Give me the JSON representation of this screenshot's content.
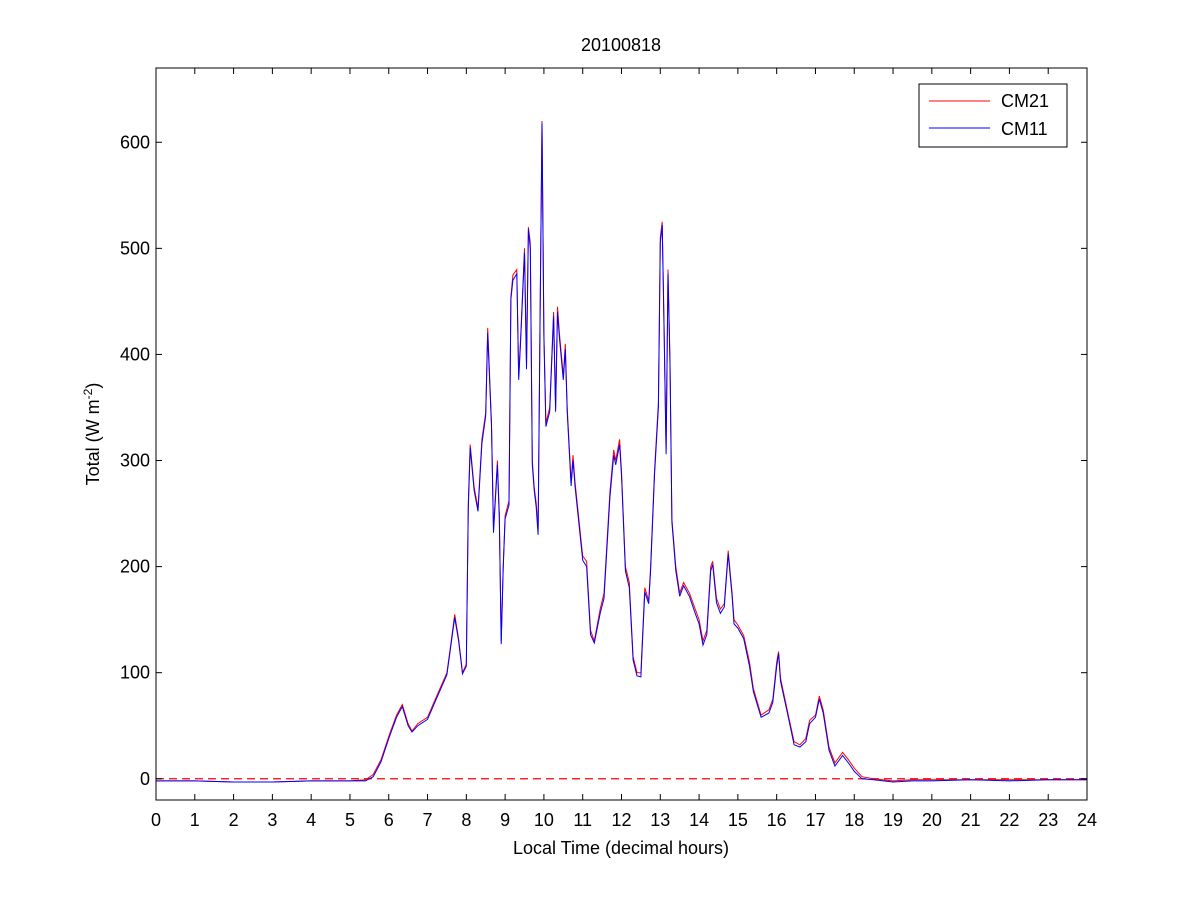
{
  "chart_data": {
    "type": "line",
    "title": "20100818",
    "xlabel": "Local Time (decimal hours)",
    "ylabel": {
      "main": "Total (W m",
      "sup": "-2",
      "end": ")"
    },
    "xlim": [
      0,
      24
    ],
    "ylim": [
      -20,
      670
    ],
    "xticks": [
      0,
      1,
      2,
      3,
      4,
      5,
      6,
      7,
      8,
      9,
      10,
      11,
      12,
      13,
      14,
      15,
      16,
      17,
      18,
      19,
      20,
      21,
      22,
      23,
      24
    ],
    "yticks": [
      0,
      100,
      200,
      300,
      400,
      500,
      600
    ],
    "grid": false,
    "legend_position": "top-right",
    "zero_line": {
      "value": 0,
      "color": "#ff0000",
      "style": "dashed"
    },
    "series": [
      {
        "name": "CM21",
        "color": "#ff0000",
        "points": [
          [
            0,
            -2
          ],
          [
            1,
            -2
          ],
          [
            2,
            -3
          ],
          [
            3,
            -3
          ],
          [
            4,
            -2
          ],
          [
            5,
            -2
          ],
          [
            5.4,
            -1
          ],
          [
            5.6,
            4
          ],
          [
            5.8,
            18
          ],
          [
            6.0,
            40
          ],
          [
            6.2,
            60
          ],
          [
            6.35,
            70
          ],
          [
            6.5,
            52
          ],
          [
            6.6,
            45
          ],
          [
            6.75,
            52
          ],
          [
            7.0,
            58
          ],
          [
            7.2,
            75
          ],
          [
            7.5,
            100
          ],
          [
            7.6,
            127
          ],
          [
            7.7,
            155
          ],
          [
            7.8,
            132
          ],
          [
            7.9,
            100
          ],
          [
            8.0,
            108
          ],
          [
            8.05,
            260
          ],
          [
            8.1,
            315
          ],
          [
            8.2,
            275
          ],
          [
            8.3,
            255
          ],
          [
            8.4,
            320
          ],
          [
            8.5,
            345
          ],
          [
            8.55,
            425
          ],
          [
            8.65,
            335
          ],
          [
            8.7,
            235
          ],
          [
            8.8,
            300
          ],
          [
            8.85,
            250
          ],
          [
            8.9,
            130
          ],
          [
            8.95,
            200
          ],
          [
            9.0,
            248
          ],
          [
            9.1,
            262
          ],
          [
            9.15,
            455
          ],
          [
            9.2,
            475
          ],
          [
            9.3,
            480
          ],
          [
            9.35,
            380
          ],
          [
            9.4,
            415
          ],
          [
            9.5,
            500
          ],
          [
            9.55,
            390
          ],
          [
            9.6,
            520
          ],
          [
            9.65,
            505
          ],
          [
            9.7,
            300
          ],
          [
            9.75,
            275
          ],
          [
            9.8,
            260
          ],
          [
            9.85,
            235
          ],
          [
            9.9,
            430
          ],
          [
            9.95,
            620
          ],
          [
            10.0,
            420
          ],
          [
            10.05,
            335
          ],
          [
            10.15,
            350
          ],
          [
            10.25,
            440
          ],
          [
            10.3,
            350
          ],
          [
            10.35,
            445
          ],
          [
            10.4,
            420
          ],
          [
            10.5,
            380
          ],
          [
            10.55,
            410
          ],
          [
            10.6,
            350
          ],
          [
            10.7,
            280
          ],
          [
            10.75,
            305
          ],
          [
            10.8,
            280
          ],
          [
            11.0,
            210
          ],
          [
            11.1,
            205
          ],
          [
            11.2,
            140
          ],
          [
            11.3,
            130
          ],
          [
            11.45,
            160
          ],
          [
            11.55,
            175
          ],
          [
            11.7,
            270
          ],
          [
            11.8,
            310
          ],
          [
            11.85,
            300
          ],
          [
            11.95,
            320
          ],
          [
            12.0,
            290
          ],
          [
            12.1,
            200
          ],
          [
            12.2,
            185
          ],
          [
            12.3,
            115
          ],
          [
            12.4,
            100
          ],
          [
            12.5,
            100
          ],
          [
            12.55,
            140
          ],
          [
            12.6,
            180
          ],
          [
            12.7,
            168
          ],
          [
            12.75,
            200
          ],
          [
            12.85,
            290
          ],
          [
            12.95,
            355
          ],
          [
            13.0,
            510
          ],
          [
            13.05,
            525
          ],
          [
            13.1,
            420
          ],
          [
            13.15,
            310
          ],
          [
            13.2,
            480
          ],
          [
            13.25,
            395
          ],
          [
            13.3,
            245
          ],
          [
            13.4,
            200
          ],
          [
            13.5,
            175
          ],
          [
            13.6,
            185
          ],
          [
            13.75,
            175
          ],
          [
            13.9,
            160
          ],
          [
            14.0,
            150
          ],
          [
            14.1,
            130
          ],
          [
            14.2,
            140
          ],
          [
            14.3,
            200
          ],
          [
            14.35,
            205
          ],
          [
            14.45,
            170
          ],
          [
            14.55,
            160
          ],
          [
            14.65,
            165
          ],
          [
            14.75,
            215
          ],
          [
            14.85,
            175
          ],
          [
            14.9,
            150
          ],
          [
            15.0,
            145
          ],
          [
            15.15,
            135
          ],
          [
            15.3,
            110
          ],
          [
            15.4,
            85
          ],
          [
            15.6,
            60
          ],
          [
            15.8,
            65
          ],
          [
            15.9,
            75
          ],
          [
            16.0,
            110
          ],
          [
            16.05,
            120
          ],
          [
            16.1,
            95
          ],
          [
            16.3,
            60
          ],
          [
            16.45,
            35
          ],
          [
            16.6,
            32
          ],
          [
            16.75,
            38
          ],
          [
            16.85,
            55
          ],
          [
            17.0,
            60
          ],
          [
            17.1,
            78
          ],
          [
            17.2,
            65
          ],
          [
            17.35,
            30
          ],
          [
            17.5,
            15
          ],
          [
            17.7,
            25
          ],
          [
            17.85,
            18
          ],
          [
            18.0,
            10
          ],
          [
            18.2,
            2
          ],
          [
            18.5,
            0
          ],
          [
            19.0,
            -2
          ],
          [
            19.5,
            -1
          ],
          [
            20,
            -1
          ],
          [
            21,
            -1
          ],
          [
            22,
            -1
          ],
          [
            23,
            -1
          ],
          [
            24,
            -1
          ]
        ]
      },
      {
        "name": "CM11",
        "color": "#0000ff",
        "points": [
          [
            0,
            -2
          ],
          [
            1,
            -2
          ],
          [
            2,
            -3
          ],
          [
            3,
            -3
          ],
          [
            4,
            -2
          ],
          [
            5,
            -2
          ],
          [
            5.4,
            -2
          ],
          [
            5.6,
            2
          ],
          [
            5.8,
            16
          ],
          [
            6.0,
            38
          ],
          [
            6.2,
            58
          ],
          [
            6.35,
            68
          ],
          [
            6.5,
            50
          ],
          [
            6.6,
            44
          ],
          [
            6.75,
            50
          ],
          [
            7.0,
            56
          ],
          [
            7.2,
            73
          ],
          [
            7.5,
            98
          ],
          [
            7.6,
            125
          ],
          [
            7.7,
            152
          ],
          [
            7.8,
            130
          ],
          [
            7.9,
            99
          ],
          [
            8.0,
            106
          ],
          [
            8.05,
            255
          ],
          [
            8.1,
            312
          ],
          [
            8.2,
            272
          ],
          [
            8.3,
            252
          ],
          [
            8.4,
            316
          ],
          [
            8.5,
            342
          ],
          [
            8.55,
            420
          ],
          [
            8.65,
            332
          ],
          [
            8.7,
            232
          ],
          [
            8.8,
            296
          ],
          [
            8.85,
            246
          ],
          [
            8.9,
            127
          ],
          [
            8.95,
            198
          ],
          [
            9.0,
            245
          ],
          [
            9.1,
            258
          ],
          [
            9.15,
            452
          ],
          [
            9.2,
            470
          ],
          [
            9.3,
            476
          ],
          [
            9.35,
            376
          ],
          [
            9.4,
            412
          ],
          [
            9.5,
            496
          ],
          [
            9.55,
            386
          ],
          [
            9.6,
            518
          ],
          [
            9.65,
            500
          ],
          [
            9.7,
            296
          ],
          [
            9.75,
            272
          ],
          [
            9.8,
            256
          ],
          [
            9.85,
            230
          ],
          [
            9.9,
            425
          ],
          [
            9.95,
            618
          ],
          [
            10.0,
            416
          ],
          [
            10.05,
            332
          ],
          [
            10.15,
            346
          ],
          [
            10.25,
            436
          ],
          [
            10.3,
            346
          ],
          [
            10.35,
            440
          ],
          [
            10.4,
            416
          ],
          [
            10.5,
            376
          ],
          [
            10.55,
            405
          ],
          [
            10.6,
            346
          ],
          [
            10.7,
            276
          ],
          [
            10.75,
            300
          ],
          [
            10.8,
            276
          ],
          [
            11.0,
            206
          ],
          [
            11.1,
            200
          ],
          [
            11.2,
            136
          ],
          [
            11.3,
            128
          ],
          [
            11.45,
            156
          ],
          [
            11.55,
            170
          ],
          [
            11.7,
            265
          ],
          [
            11.8,
            305
          ],
          [
            11.85,
            296
          ],
          [
            11.95,
            315
          ],
          [
            12.0,
            286
          ],
          [
            12.1,
            196
          ],
          [
            12.2,
            180
          ],
          [
            12.3,
            112
          ],
          [
            12.4,
            97
          ],
          [
            12.5,
            96
          ],
          [
            12.55,
            136
          ],
          [
            12.6,
            176
          ],
          [
            12.7,
            165
          ],
          [
            12.75,
            196
          ],
          [
            12.85,
            286
          ],
          [
            12.95,
            350
          ],
          [
            13.0,
            505
          ],
          [
            13.05,
            522
          ],
          [
            13.1,
            416
          ],
          [
            13.15,
            306
          ],
          [
            13.2,
            476
          ],
          [
            13.25,
            390
          ],
          [
            13.3,
            242
          ],
          [
            13.4,
            196
          ],
          [
            13.5,
            172
          ],
          [
            13.6,
            182
          ],
          [
            13.75,
            172
          ],
          [
            13.9,
            156
          ],
          [
            14.0,
            146
          ],
          [
            14.1,
            126
          ],
          [
            14.2,
            136
          ],
          [
            14.3,
            196
          ],
          [
            14.35,
            202
          ],
          [
            14.45,
            166
          ],
          [
            14.55,
            156
          ],
          [
            14.65,
            162
          ],
          [
            14.75,
            212
          ],
          [
            14.85,
            172
          ],
          [
            14.9,
            146
          ],
          [
            15.0,
            142
          ],
          [
            15.15,
            132
          ],
          [
            15.3,
            106
          ],
          [
            15.4,
            82
          ],
          [
            15.6,
            58
          ],
          [
            15.8,
            62
          ],
          [
            15.9,
            72
          ],
          [
            16.0,
            106
          ],
          [
            16.05,
            118
          ],
          [
            16.1,
            92
          ],
          [
            16.3,
            58
          ],
          [
            16.45,
            32
          ],
          [
            16.6,
            30
          ],
          [
            16.75,
            35
          ],
          [
            16.85,
            52
          ],
          [
            17.0,
            58
          ],
          [
            17.1,
            75
          ],
          [
            17.2,
            62
          ],
          [
            17.35,
            27
          ],
          [
            17.5,
            12
          ],
          [
            17.7,
            22
          ],
          [
            17.85,
            15
          ],
          [
            18.0,
            7
          ],
          [
            18.2,
            0
          ],
          [
            18.5,
            -1
          ],
          [
            19.0,
            -3
          ],
          [
            19.5,
            -2
          ],
          [
            20,
            -2
          ],
          [
            21,
            -1
          ],
          [
            22,
            -2
          ],
          [
            23,
            -1
          ],
          [
            24,
            -1
          ]
        ]
      }
    ]
  }
}
